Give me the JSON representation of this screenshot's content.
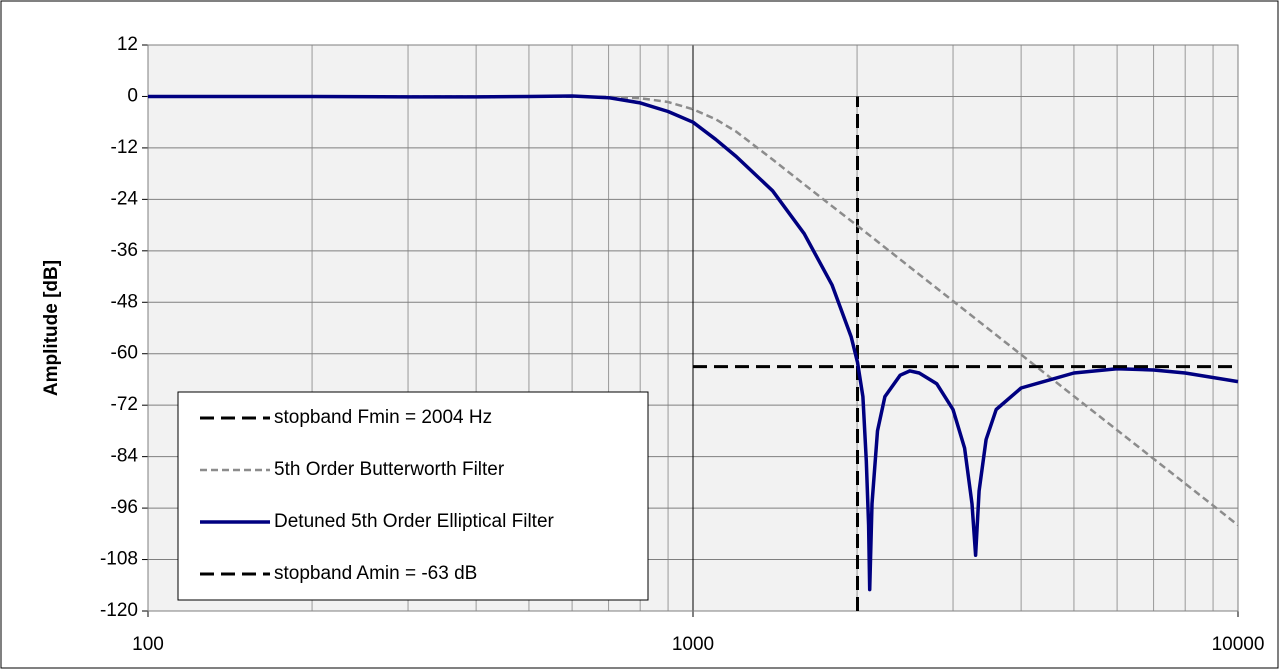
{
  "chart_data": {
    "type": "line",
    "ylabel": "Amplitude [dB]",
    "xscale": "log",
    "xlim": [
      100,
      10000
    ],
    "xticks": [
      100,
      1000,
      10000
    ],
    "ylim": [
      -120,
      12
    ],
    "yticks": [
      12,
      0,
      -12,
      -24,
      -36,
      -48,
      -60,
      -72,
      -84,
      -96,
      -108,
      -120
    ],
    "grid": true,
    "legend": "lower left",
    "series": [
      {
        "name": "stopband Fmin = 2004 Hz",
        "color": "#000000",
        "style": "dashed",
        "width": 3,
        "x": [
          2004,
          2004
        ],
        "values": [
          -120,
          0
        ]
      },
      {
        "name": "5th Order Butterworth Filter",
        "color": "#8c8c8c",
        "style": "dotted",
        "width": 2.5,
        "x": [
          100,
          500,
          700,
          800,
          900,
          1000,
          1100,
          1200,
          1400,
          1600,
          1800,
          2000,
          2500,
          3000,
          4000,
          5000,
          6000,
          7000,
          8000,
          9000,
          10000
        ],
        "values": [
          0,
          0,
          -0.1,
          -0.4,
          -1.3,
          -3,
          -5.3,
          -8.2,
          -14.7,
          -20.5,
          -25.6,
          -30.1,
          -39.8,
          -47.7,
          -60.2,
          -69.9,
          -77.8,
          -84.5,
          -90.3,
          -95.4,
          -100
        ]
      },
      {
        "name": "Detuned 5th Order Elliptical Filter",
        "color": "#000080",
        "style": "solid",
        "width": 3.5,
        "x": [
          100,
          200,
          300,
          400,
          500,
          600,
          700,
          800,
          900,
          1000,
          1100,
          1200,
          1400,
          1600,
          1800,
          1950,
          2004,
          2050,
          2080,
          2100,
          2110,
          2130,
          2180,
          2250,
          2400,
          2500,
          2600,
          2800,
          3000,
          3150,
          3250,
          3300,
          3350,
          3450,
          3600,
          4000,
          5000,
          6000,
          7000,
          8000,
          10000
        ],
        "values": [
          0,
          0,
          -0.1,
          -0.1,
          0,
          0.1,
          -0.3,
          -1.5,
          -3.5,
          -6,
          -10,
          -14,
          -22,
          -32,
          -44,
          -56,
          -62,
          -70,
          -85,
          -100,
          -115,
          -95,
          -78,
          -70,
          -65,
          -64,
          -64.5,
          -67,
          -73,
          -82,
          -95,
          -107,
          -92,
          -80,
          -73,
          -68,
          -64.5,
          -63.5,
          -63.8,
          -64.5,
          -66.5
        ]
      },
      {
        "name": "stopband Amin = -63 dB",
        "color": "#000000",
        "style": "dashed",
        "width": 3,
        "x": [
          1000,
          10000
        ],
        "values": [
          -63,
          -63
        ]
      }
    ]
  }
}
